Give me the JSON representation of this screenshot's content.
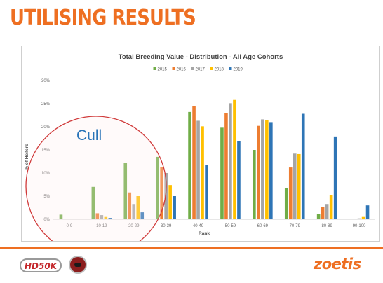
{
  "slide": {
    "title": "UTILISING RESULTS",
    "annotation": "Cull",
    "logos": {
      "left": "HD50K",
      "right": "zoetis"
    }
  },
  "colors": {
    "accent": "#ee6f22",
    "cull_circle": "#d03a3a",
    "cull_text": "#2a74b8",
    "series": [
      "#70ad47",
      "#ed7d31",
      "#a5a5a5",
      "#ffc000",
      "#2e75b6"
    ]
  },
  "chart_data": {
    "type": "bar",
    "title": "Total Breeding Value - Distribution - All Age Cohorts",
    "xlabel": "Rank",
    "ylabel": "% of Heifers",
    "ylim": [
      0,
      30
    ],
    "yticks": [
      "0%",
      "5%",
      "10%",
      "15%",
      "20%",
      "25%",
      "30%"
    ],
    "grid": false,
    "legend_position": "top",
    "categories": [
      "0-9",
      "10-19",
      "20-29",
      "30-39",
      "40-49",
      "50-59",
      "60-69",
      "70-79",
      "80-89",
      "90-100"
    ],
    "series": [
      {
        "name": "2015",
        "color": "#70ad47",
        "values": [
          1.0,
          7.0,
          12.2,
          13.5,
          23.2,
          19.8,
          15.0,
          6.8,
          1.2,
          0.0
        ]
      },
      {
        "name": "2016",
        "color": "#ed7d31",
        "values": [
          0.1,
          1.3,
          5.8,
          11.3,
          24.5,
          23.0,
          20.2,
          11.2,
          2.6,
          0.1
        ]
      },
      {
        "name": "2017",
        "color": "#a5a5a5",
        "values": [
          0.1,
          0.9,
          3.3,
          10.0,
          21.3,
          25.1,
          21.6,
          14.2,
          3.3,
          0.2
        ]
      },
      {
        "name": "2018",
        "color": "#ffc000",
        "values": [
          0.0,
          0.5,
          5.0,
          7.4,
          20.1,
          25.8,
          21.4,
          14.1,
          5.3,
          0.5
        ]
      },
      {
        "name": "2019",
        "color": "#2e75b6",
        "values": [
          0.0,
          0.3,
          1.5,
          5.0,
          11.8,
          16.9,
          21.0,
          22.8,
          17.9,
          3.0
        ]
      }
    ]
  }
}
